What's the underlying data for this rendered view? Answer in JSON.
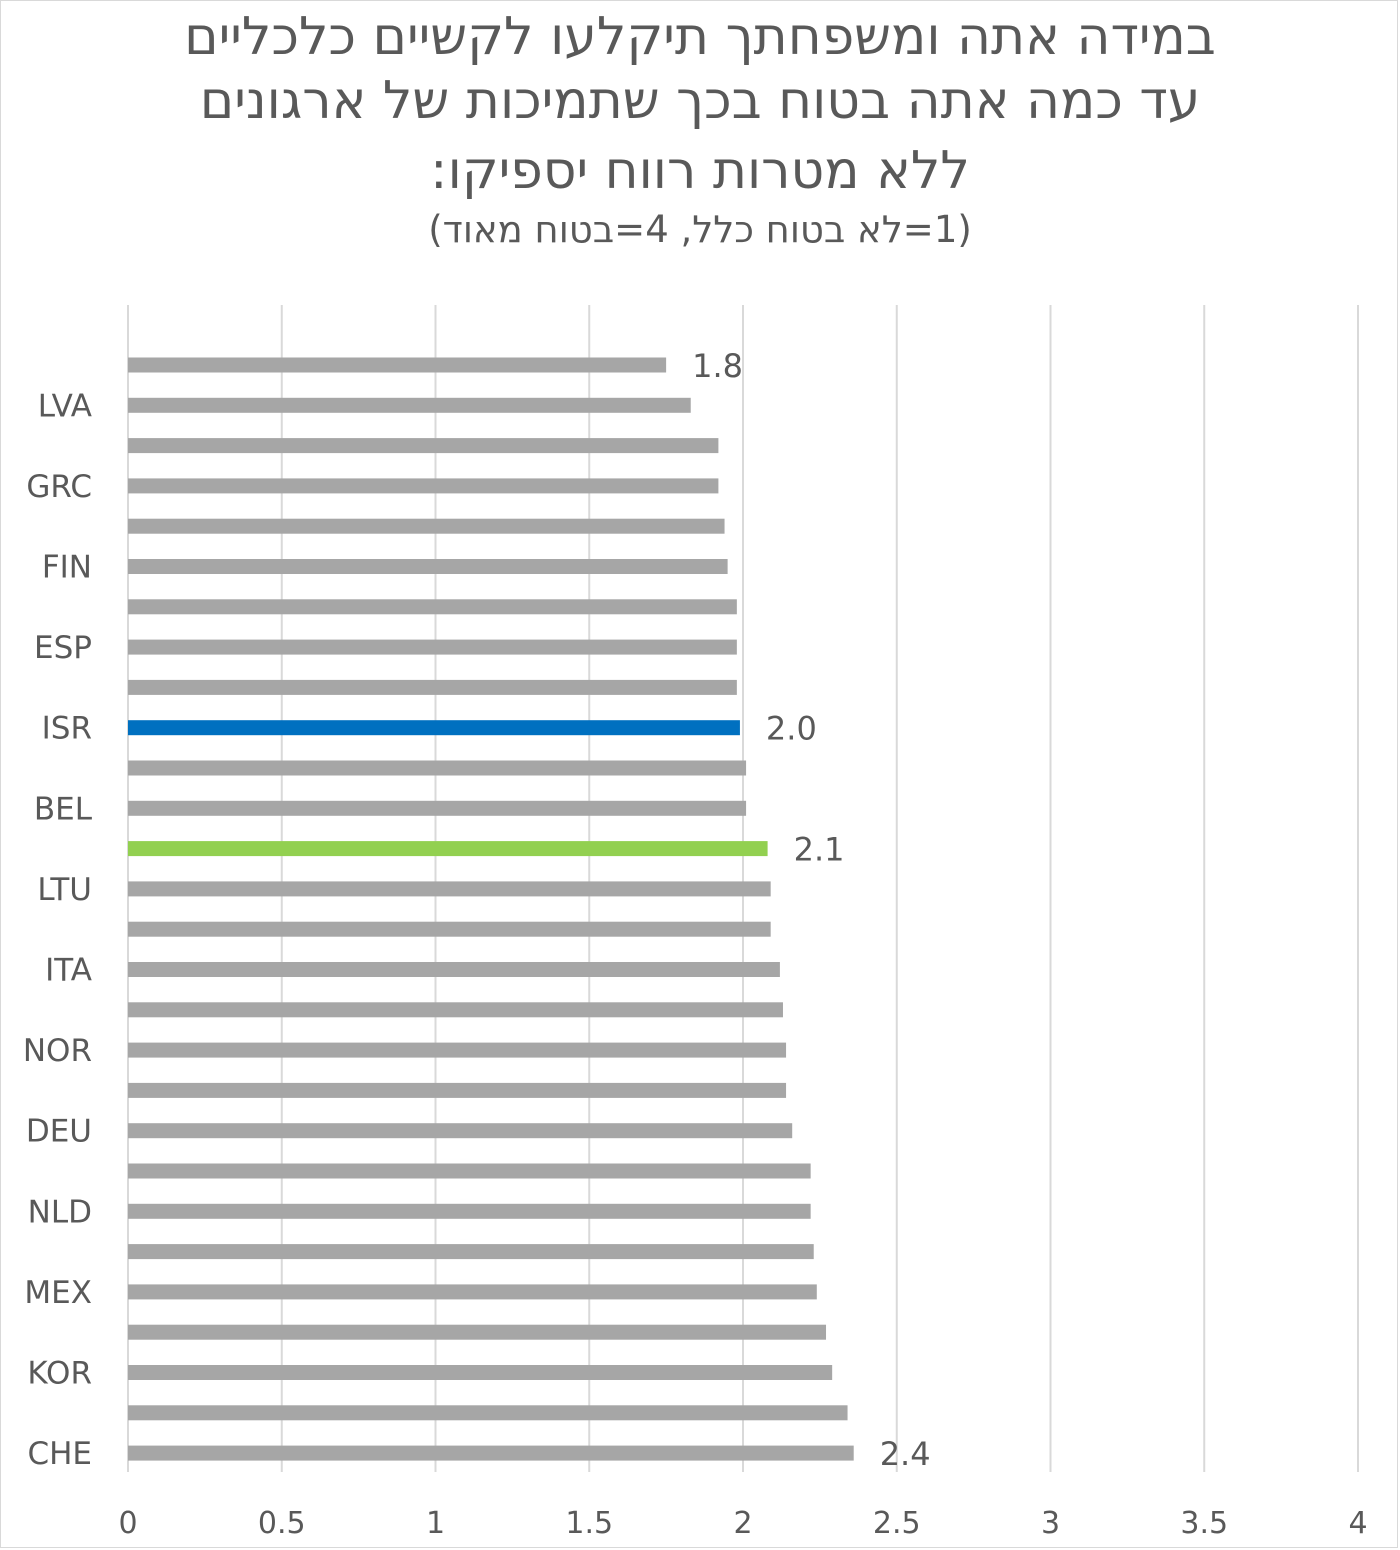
{
  "title_lines": [
    "במידה אתה ומשפחתך תיקלעו לקשיים כלכליים",
    "עד כמה אתה בטוח בכך שתמיכות של ארגונים",
    "ללא מטרות רווח יספיקו:"
  ],
  "subtitle": "(1=לא בטוח כלל, 4=בטוח מאוד)",
  "colors": {
    "default_bar": "#a6a6a6",
    "highlight_israel": "#0070c0",
    "highlight_average": "#92d050",
    "gridline": "#d9d9d9",
    "text": "#595959"
  },
  "chart_data": {
    "type": "bar",
    "orientation": "horizontal",
    "title": "במידה אתה ומשפחתך תיקלעו לקשיים כלכליים עד כמה אתה בטוח בכך שתמיכות של ארגונים ללא מטרות רווח יספיקו:",
    "subtitle": "(1=לא בטוח כלל, 4=בטוח מאוד)",
    "xlim": [
      0,
      4
    ],
    "x_ticks": [
      "0",
      "0.5",
      "1",
      "1.5",
      "2",
      "2.5",
      "3",
      "3.5",
      "4"
    ],
    "grid": "vertical",
    "legend": "none",
    "categories": [
      "",
      "LVA",
      "",
      "GRC",
      "",
      "FIN",
      "",
      "ESP",
      "",
      "ISR",
      "",
      "BEL",
      "",
      "LTU",
      "",
      "ITA",
      "",
      "NOR",
      "",
      "DEU",
      "",
      "NLD",
      "",
      "MEX",
      "",
      "KOR",
      "",
      "CHE"
    ],
    "values": [
      1.75,
      1.83,
      1.92,
      1.92,
      1.94,
      1.95,
      1.98,
      1.98,
      1.98,
      1.99,
      2.01,
      2.01,
      2.08,
      2.09,
      2.09,
      2.12,
      2.13,
      2.14,
      2.14,
      2.16,
      2.22,
      2.22,
      2.23,
      2.24,
      2.27,
      2.29,
      2.34,
      2.36
    ],
    "bar_colors": [
      "default",
      "default",
      "default",
      "default",
      "default",
      "default",
      "default",
      "default",
      "default",
      "israel",
      "default",
      "default",
      "average",
      "default",
      "default",
      "default",
      "default",
      "default",
      "default",
      "default",
      "default",
      "default",
      "default",
      "default",
      "default",
      "default",
      "default",
      "default"
    ],
    "data_labels": [
      {
        "index": 0,
        "text": "1.8"
      },
      {
        "index": 9,
        "text": "2.0"
      },
      {
        "index": 12,
        "text": "2.1"
      },
      {
        "index": 27,
        "text": "2.4"
      }
    ]
  }
}
